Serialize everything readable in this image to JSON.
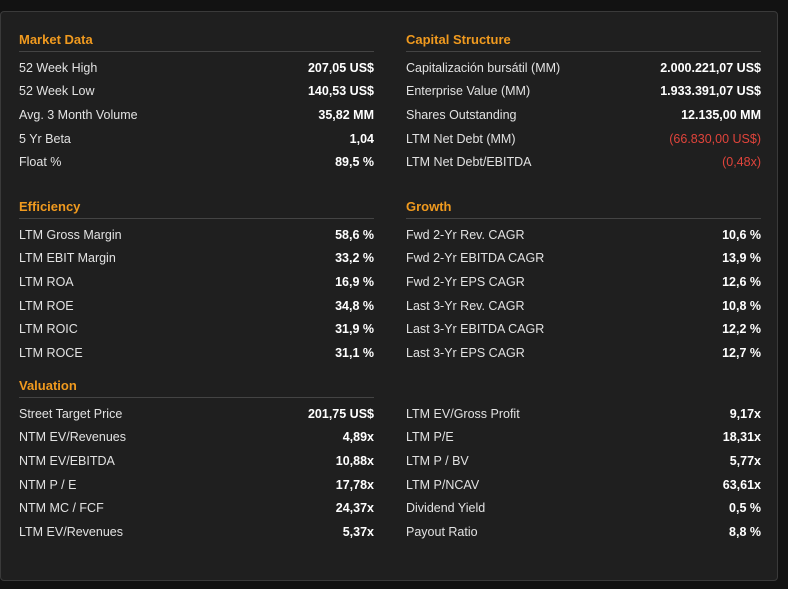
{
  "sections": {
    "market_data": {
      "title": "Market Data",
      "rows": [
        {
          "label": "52 Week High",
          "value": "207,05 US$"
        },
        {
          "label": "52 Week Low",
          "value": "140,53 US$"
        },
        {
          "label": "Avg. 3 Month Volume",
          "value": "35,82 MM"
        },
        {
          "label": "5 Yr Beta",
          "value": "1,04"
        },
        {
          "label": "Float %",
          "value": "89,5 %"
        }
      ]
    },
    "capital_structure": {
      "title": "Capital Structure",
      "rows": [
        {
          "label": "Capitalización bursátil (MM)",
          "value": "2.000.221,07 US$"
        },
        {
          "label": "Enterprise Value (MM)",
          "value": "1.933.391,07 US$"
        },
        {
          "label": "Shares Outstanding",
          "value": "12.135,00 MM"
        },
        {
          "label": "LTM Net Debt (MM)",
          "value": "(66.830,00 US$)",
          "negative": true
        },
        {
          "label": "LTM Net Debt/EBITDA",
          "value": "(0,48x)",
          "negative": true
        }
      ]
    },
    "efficiency": {
      "title": "Efficiency",
      "rows": [
        {
          "label": "LTM Gross Margin",
          "value": "58,6 %"
        },
        {
          "label": "LTM EBIT Margin",
          "value": "33,2 %"
        },
        {
          "label": "LTM ROA",
          "value": "16,9 %"
        },
        {
          "label": "LTM ROE",
          "value": "34,8 %"
        },
        {
          "label": "LTM ROIC",
          "value": "31,9 %"
        },
        {
          "label": "LTM ROCE",
          "value": "31,1 %"
        }
      ]
    },
    "growth": {
      "title": "Growth",
      "rows": [
        {
          "label": "Fwd 2-Yr Rev. CAGR",
          "value": "10,6 %"
        },
        {
          "label": "Fwd 2-Yr EBITDA CAGR",
          "value": "13,9 %"
        },
        {
          "label": "Fwd 2-Yr EPS CAGR",
          "value": "12,6 %"
        },
        {
          "label": "Last 3-Yr Rev. CAGR",
          "value": "10,8 %"
        },
        {
          "label": "Last 3-Yr EBITDA CAGR",
          "value": "12,2 %"
        },
        {
          "label": "Last 3-Yr EPS CAGR",
          "value": "12,7 %"
        }
      ]
    },
    "valuation": {
      "title": "Valuation",
      "rows": [
        {
          "label": "Street Target Price",
          "value": "201,75 US$"
        },
        {
          "label": "NTM EV/Revenues",
          "value": "4,89x"
        },
        {
          "label": "NTM EV/EBITDA",
          "value": "10,88x"
        },
        {
          "label": "NTM P / E",
          "value": "17,78x"
        },
        {
          "label": "NTM MC / FCF",
          "value": "24,37x"
        },
        {
          "label": "LTM EV/Revenues",
          "value": "5,37x"
        }
      ]
    },
    "valuation_right": {
      "rows": [
        {
          "label": "LTM EV/Gross Profit",
          "value": "9,17x"
        },
        {
          "label": "LTM P/E",
          "value": "18,31x"
        },
        {
          "label": "LTM P / BV",
          "value": "5,77x"
        },
        {
          "label": "LTM P/NCAV",
          "value": "63,61x"
        },
        {
          "label": "Dividend Yield",
          "value": "0,5 %"
        },
        {
          "label": "Payout Ratio",
          "value": "8,8 %"
        }
      ]
    }
  },
  "colors": {
    "accent": "#f09a1f",
    "negative": "#e0443b",
    "panel_bg": "#1f1f1f"
  }
}
